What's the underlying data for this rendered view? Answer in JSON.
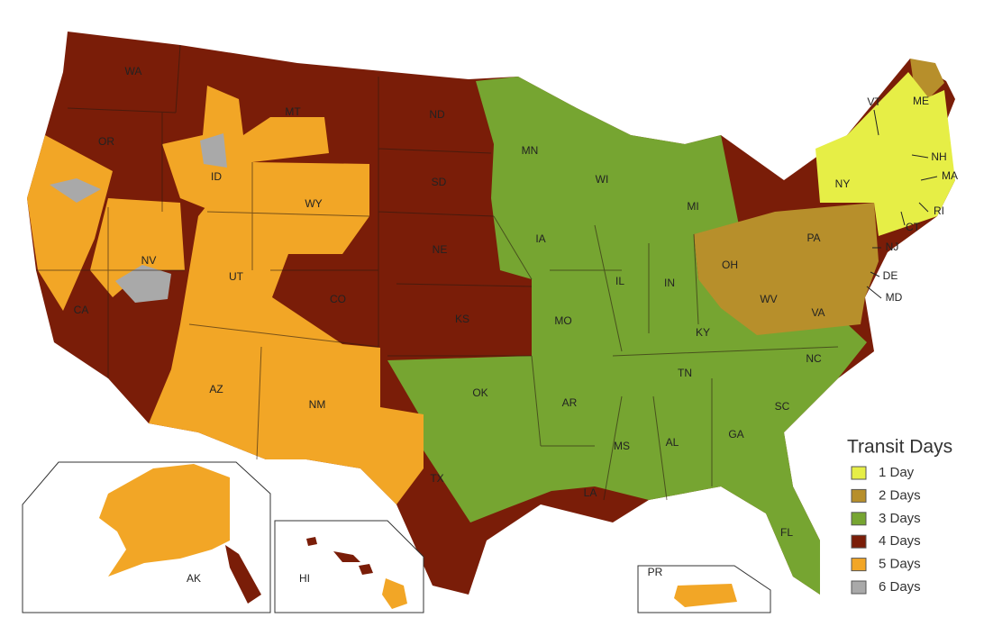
{
  "map": {
    "state_labels": [
      "WA",
      "OR",
      "ID",
      "MT",
      "WY",
      "NV",
      "UT",
      "CO",
      "CA",
      "AZ",
      "NM",
      "ND",
      "SD",
      "NE",
      "KS",
      "OK",
      "TX",
      "MN",
      "IA",
      "MO",
      "AR",
      "LA",
      "WI",
      "IL",
      "MI",
      "IN",
      "OH",
      "KY",
      "TN",
      "MS",
      "AL",
      "GA",
      "FL",
      "SC",
      "NC",
      "VA",
      "WV",
      "PA",
      "NY",
      "VT",
      "ME",
      "NH",
      "MA",
      "RI",
      "CT",
      "NJ",
      "DE",
      "MD",
      "AK",
      "HI",
      "PR"
    ]
  },
  "legend": {
    "title": "Transit Days",
    "items": [
      {
        "label": "1 Day",
        "color": "#e6ee46"
      },
      {
        "label": "2 Days",
        "color": "#b78f2b"
      },
      {
        "label": "3 Days",
        "color": "#76a531"
      },
      {
        "label": "4 Days",
        "color": "#7a1d08"
      },
      {
        "label": "5 Days",
        "color": "#f2a626"
      },
      {
        "label": "6 Days",
        "color": "#a9a9a9"
      }
    ]
  }
}
